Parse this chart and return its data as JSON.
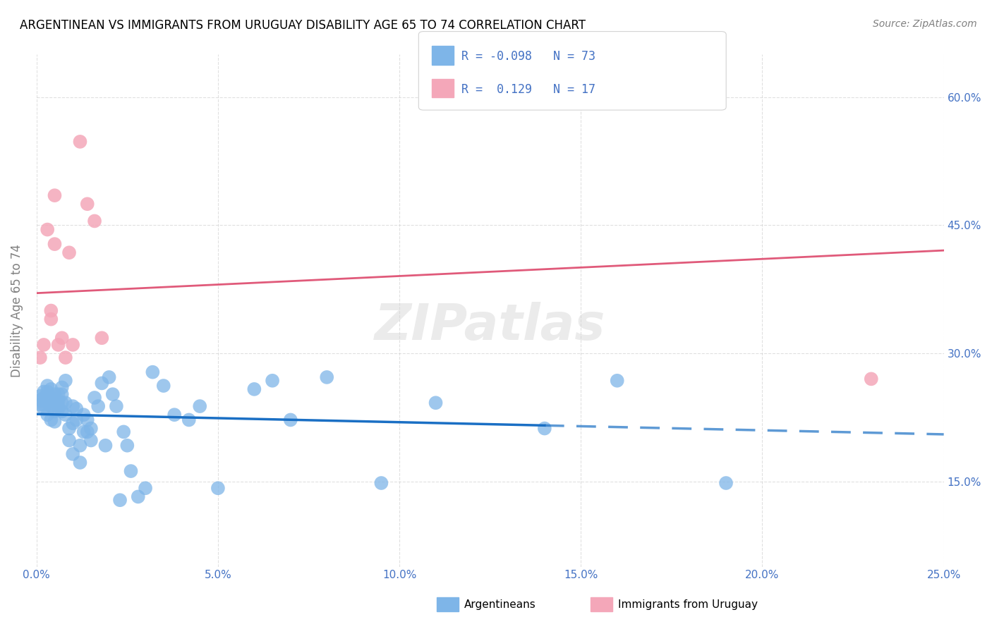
{
  "title": "ARGENTINEAN VS IMMIGRANTS FROM URUGUAY DISABILITY AGE 65 TO 74 CORRELATION CHART",
  "source": "Source: ZipAtlas.com",
  "ylabel": "Disability Age 65 to 74",
  "y_ticks": [
    0.15,
    0.3,
    0.45,
    0.6
  ],
  "y_tick_labels": [
    "15.0%",
    "30.0%",
    "45.0%",
    "60.0%"
  ],
  "x_ticks": [
    0.0,
    0.05,
    0.1,
    0.15,
    0.2,
    0.25
  ],
  "x_tick_labels": [
    "0.0%",
    "5.0%",
    "10.0%",
    "15.0%",
    "20.0%",
    "25.0%"
  ],
  "x_min": 0.0,
  "x_max": 0.25,
  "y_min": 0.05,
  "y_max": 0.65,
  "blue_color": "#7EB5E8",
  "pink_color": "#F4A7B9",
  "line_blue": "#1A6FC4",
  "line_pink": "#E05A7A",
  "watermark": "ZIPatlas",
  "argentinean_x": [
    0.001,
    0.001,
    0.001,
    0.002,
    0.002,
    0.002,
    0.002,
    0.003,
    0.003,
    0.003,
    0.003,
    0.004,
    0.004,
    0.004,
    0.004,
    0.005,
    0.005,
    0.005,
    0.005,
    0.006,
    0.006,
    0.006,
    0.006,
    0.007,
    0.007,
    0.007,
    0.007,
    0.008,
    0.008,
    0.008,
    0.009,
    0.009,
    0.01,
    0.01,
    0.01,
    0.011,
    0.011,
    0.012,
    0.012,
    0.013,
    0.013,
    0.014,
    0.014,
    0.015,
    0.015,
    0.016,
    0.017,
    0.018,
    0.019,
    0.02,
    0.021,
    0.022,
    0.023,
    0.024,
    0.025,
    0.026,
    0.028,
    0.03,
    0.032,
    0.035,
    0.038,
    0.042,
    0.045,
    0.05,
    0.06,
    0.065,
    0.07,
    0.08,
    0.095,
    0.11,
    0.14,
    0.16,
    0.19
  ],
  "argentinean_y": [
    0.24,
    0.245,
    0.25,
    0.235,
    0.24,
    0.248,
    0.255,
    0.228,
    0.243,
    0.255,
    0.262,
    0.222,
    0.238,
    0.248,
    0.258,
    0.22,
    0.232,
    0.242,
    0.252,
    0.235,
    0.245,
    0.238,
    0.252,
    0.232,
    0.242,
    0.252,
    0.26,
    0.228,
    0.242,
    0.268,
    0.198,
    0.212,
    0.182,
    0.218,
    0.238,
    0.222,
    0.235,
    0.172,
    0.192,
    0.208,
    0.228,
    0.208,
    0.222,
    0.198,
    0.212,
    0.248,
    0.238,
    0.265,
    0.192,
    0.272,
    0.252,
    0.238,
    0.128,
    0.208,
    0.192,
    0.162,
    0.132,
    0.142,
    0.278,
    0.262,
    0.228,
    0.222,
    0.238,
    0.142,
    0.258,
    0.268,
    0.222,
    0.272,
    0.148,
    0.242,
    0.212,
    0.268,
    0.148
  ],
  "uruguay_x": [
    0.001,
    0.002,
    0.003,
    0.004,
    0.004,
    0.005,
    0.005,
    0.006,
    0.007,
    0.008,
    0.009,
    0.01,
    0.012,
    0.014,
    0.016,
    0.018,
    0.23
  ],
  "uruguay_y": [
    0.295,
    0.31,
    0.445,
    0.34,
    0.35,
    0.428,
    0.485,
    0.31,
    0.318,
    0.295,
    0.418,
    0.31,
    0.548,
    0.475,
    0.455,
    0.318,
    0.27
  ]
}
